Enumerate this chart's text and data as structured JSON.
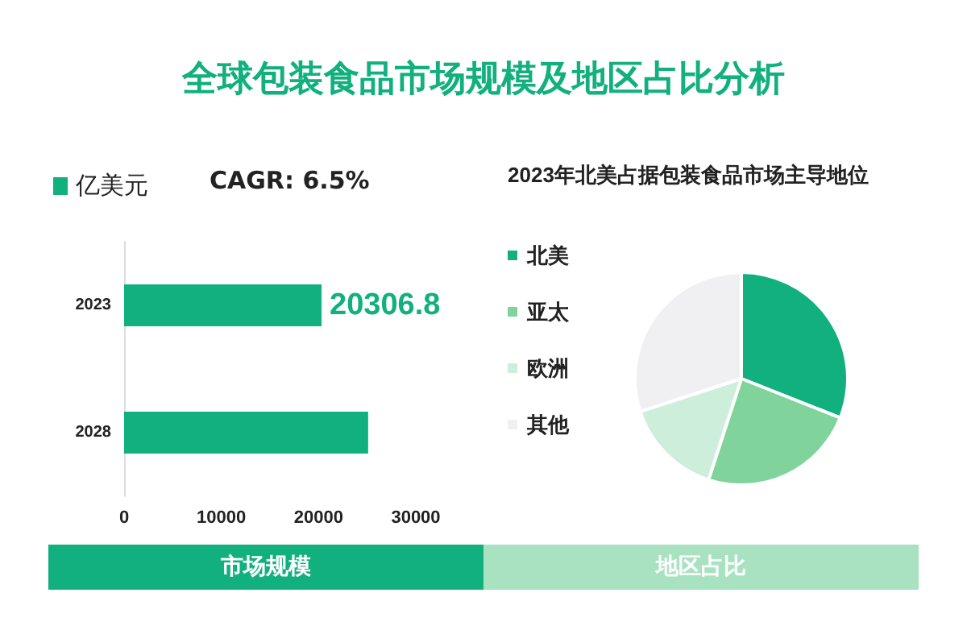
{
  "chart_data": [
    {
      "type": "bar",
      "title": "全球包装食品市场规模及地区占比分析",
      "orientation": "horizontal",
      "categories": [
        "2023",
        "2028"
      ],
      "series": [
        {
          "name": "亿美元",
          "color": "#12b07e",
          "values": [
            20306.8,
            25100
          ]
        }
      ],
      "value_labels": [
        "20306.8",
        null
      ],
      "xlim": [
        0,
        30000
      ],
      "xticks": [
        0,
        10000,
        20000,
        30000
      ],
      "grid": false,
      "legend": "top left",
      "annotations": [
        "CAGR: 6.5%",
        "市场规模"
      ]
    },
    {
      "type": "pie",
      "title": "2023年北美占据包装食品市场主导地位",
      "categories": [
        "北美",
        "亚太",
        "欧洲",
        "其他"
      ],
      "values": [
        31,
        24,
        15,
        30
      ],
      "colors": [
        "#12b07e",
        "#7fd39b",
        "#cdeedb",
        "#f0f0f2"
      ],
      "legend": "left",
      "annotations": [
        "地区占比"
      ]
    }
  ]
}
